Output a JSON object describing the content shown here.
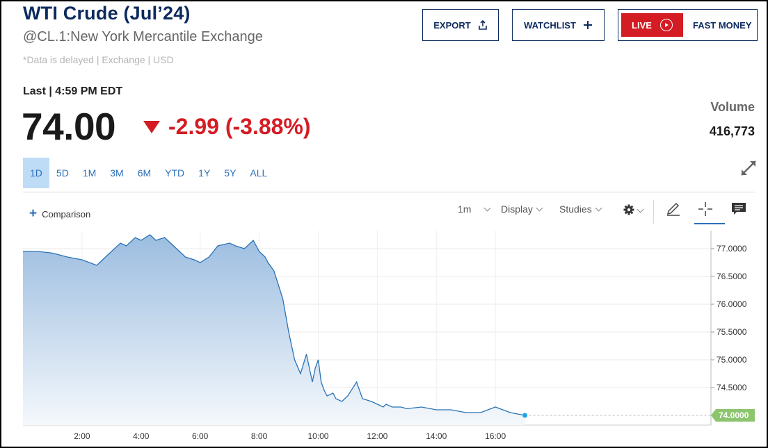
{
  "header": {
    "title": "WTI Crude (Jul’24)",
    "subtitle": "@CL.1:New York Mercantile Exchange",
    "delayed_note": "*Data is delayed | Exchange | USD",
    "export_label": "EXPORT",
    "watchlist_label": "WATCHLIST",
    "live_label": "LIVE",
    "fast_money_label": "FAST MONEY"
  },
  "quote": {
    "last_line": "Last | 4:59 PM EDT",
    "price": "74.00",
    "change": "-2.99 (-3.88%)",
    "volume_label": "Volume",
    "volume_value": "416,773"
  },
  "ranges": [
    "1D",
    "5D",
    "1M",
    "3M",
    "6M",
    "YTD",
    "1Y",
    "5Y",
    "ALL"
  ],
  "active_range": "1D",
  "toolbar": {
    "comparison_label": "Comparison",
    "interval_label": "1m",
    "display_label": "Display",
    "studies_label": "Studies"
  },
  "colors": {
    "brand_navy": "#0c2a5e",
    "down_red": "#d41c24",
    "line_blue": "#2a73b5",
    "area_top": "#9cbde0",
    "last_price_tag": "#8cc56d"
  },
  "chart_data": {
    "type": "area",
    "title": "",
    "xlabel": "",
    "ylabel": "",
    "x_tick_labels": [
      "2:00",
      "4:00",
      "6:00",
      "8:00",
      "10:00",
      "12:00",
      "14:00",
      "16:00"
    ],
    "y_tick_labels": [
      "77.0000",
      "76.5000",
      "76.0000",
      "75.5000",
      "75.0000",
      "74.5000"
    ],
    "ylim": [
      73.95,
      77.2
    ],
    "xlim_hours": [
      0,
      23.3
    ],
    "last_price_label": "74.0000",
    "last_price": 74.0,
    "series": [
      {
        "x_hours": [
          0.0,
          0.5,
          1.0,
          1.5,
          2.0,
          2.5,
          2.8,
          3.0,
          3.3,
          3.5,
          3.8,
          4.0,
          4.3,
          4.5,
          4.8,
          5.0,
          5.3,
          5.5,
          5.8,
          6.0,
          6.3,
          6.6,
          7.0,
          7.2,
          7.5,
          7.8,
          8.0,
          8.2,
          8.3,
          8.5,
          8.8,
          9.0,
          9.2,
          9.4,
          9.6,
          9.8,
          9.9,
          10.0,
          10.1,
          10.2,
          10.3,
          10.5,
          10.6,
          10.8,
          11.0,
          11.3,
          11.5,
          11.8,
          12.0,
          12.2,
          12.3,
          12.5,
          12.8,
          13.0,
          13.5,
          14.0,
          14.5,
          15.0,
          15.5,
          16.0,
          16.5,
          17.0
        ],
        "values": [
          76.95,
          76.95,
          76.92,
          76.85,
          76.8,
          76.7,
          76.85,
          76.95,
          77.1,
          77.05,
          77.2,
          77.15,
          77.25,
          77.15,
          77.2,
          77.1,
          76.95,
          76.85,
          76.8,
          76.75,
          76.85,
          77.05,
          77.1,
          77.05,
          77.0,
          77.15,
          76.95,
          76.85,
          76.75,
          76.6,
          76.1,
          75.5,
          75.0,
          74.75,
          75.1,
          74.6,
          74.85,
          75.0,
          74.6,
          74.45,
          74.35,
          74.4,
          74.3,
          74.25,
          74.35,
          74.6,
          74.3,
          74.25,
          74.2,
          74.15,
          74.2,
          74.15,
          74.15,
          74.12,
          74.15,
          74.1,
          74.1,
          74.05,
          74.05,
          74.15,
          74.05,
          74.0
        ]
      }
    ]
  }
}
